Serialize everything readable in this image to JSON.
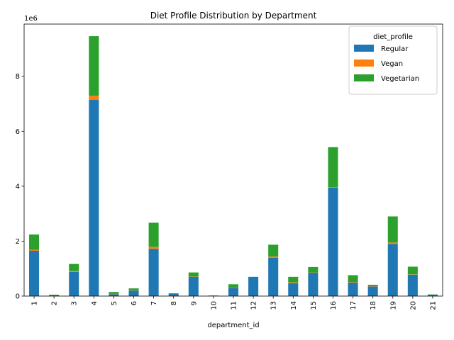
{
  "chart_data": {
    "type": "bar",
    "stacked": true,
    "title": "Diet Profile Distribution by Department",
    "xlabel": "department_id",
    "ylabel": "",
    "y_offset_label": "1e6",
    "ylim": [
      0,
      9.9
    ],
    "y_ticks": [
      0,
      2,
      4,
      6,
      8
    ],
    "categories": [
      "1",
      "2",
      "3",
      "4",
      "5",
      "6",
      "7",
      "8",
      "9",
      "10",
      "11",
      "12",
      "13",
      "14",
      "15",
      "16",
      "17",
      "18",
      "19",
      "20",
      "21"
    ],
    "series": [
      {
        "name": "Regular",
        "color": "#1f77b4",
        "values": [
          1.65,
          0.03,
          0.88,
          7.15,
          0.07,
          0.2,
          1.72,
          0.09,
          0.7,
          0.02,
          0.3,
          0.7,
          1.4,
          0.47,
          0.85,
          3.95,
          0.49,
          0.35,
          1.9,
          0.78,
          0.04
        ]
      },
      {
        "name": "Vegan",
        "color": "#ff7f0e",
        "values": [
          0.04,
          0.0,
          0.03,
          0.14,
          0.01,
          0.01,
          0.07,
          0.0,
          0.01,
          0.0,
          0.01,
          0.0,
          0.04,
          0.03,
          0.01,
          0.02,
          0.02,
          0.01,
          0.05,
          0.01,
          0.0
        ]
      },
      {
        "name": "Vegetarian",
        "color": "#2ca02c",
        "values": [
          0.55,
          0.02,
          0.26,
          2.17,
          0.07,
          0.07,
          0.88,
          0.01,
          0.15,
          0.0,
          0.12,
          0.0,
          0.43,
          0.2,
          0.2,
          1.45,
          0.25,
          0.05,
          0.95,
          0.28,
          0.02
        ]
      }
    ],
    "legend": {
      "title": "diet_profile",
      "placement": "top-right"
    },
    "grid": false
  }
}
